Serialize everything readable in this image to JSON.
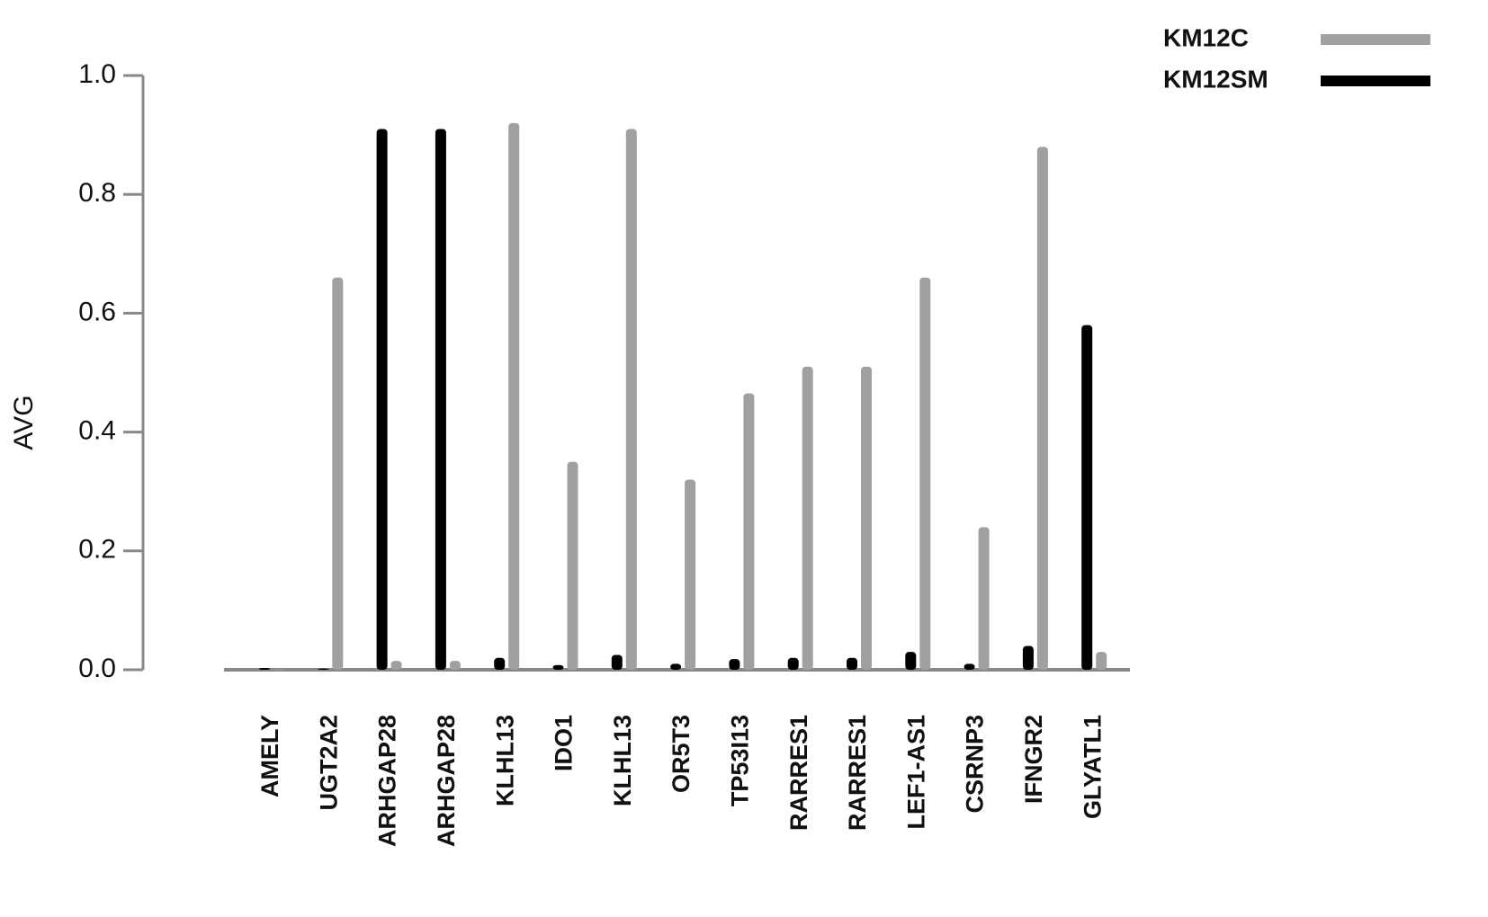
{
  "chart_data": {
    "type": "bar",
    "y_label": "AVG",
    "categories": [
      "AMELY",
      "UGT2A2",
      "ARHGAP28",
      "ARHGAP28",
      "KLHL13",
      "IDO1",
      "KLHL13",
      "OR5T3",
      "TP53I13",
      "RARRES1",
      "RARRES1",
      "LEF1-AS1",
      "CSRNP3",
      "IFNGR2",
      "GLYATL1"
    ],
    "series": [
      {
        "name": "KM12SM",
        "color": "#000000",
        "values": [
          0.003,
          0.002,
          0.91,
          0.91,
          0.02,
          0.008,
          0.025,
          0.01,
          0.018,
          0.02,
          0.02,
          0.03,
          0.01,
          0.04,
          0.58
        ]
      },
      {
        "name": "KM12C",
        "color": "#a0a0a0",
        "values": [
          0.001,
          0.66,
          0.015,
          0.015,
          0.92,
          0.35,
          0.91,
          0.32,
          0.465,
          0.51,
          0.51,
          0.66,
          0.24,
          0.88,
          0.03
        ]
      }
    ],
    "ylim": [
      0,
      1
    ],
    "yticks": [
      {
        "value": 0,
        "label": "0.0"
      },
      0.2,
      0.4,
      0.6,
      0.8,
      {
        "value": 1,
        "label": "1.0"
      }
    ],
    "legend": "top-right"
  }
}
